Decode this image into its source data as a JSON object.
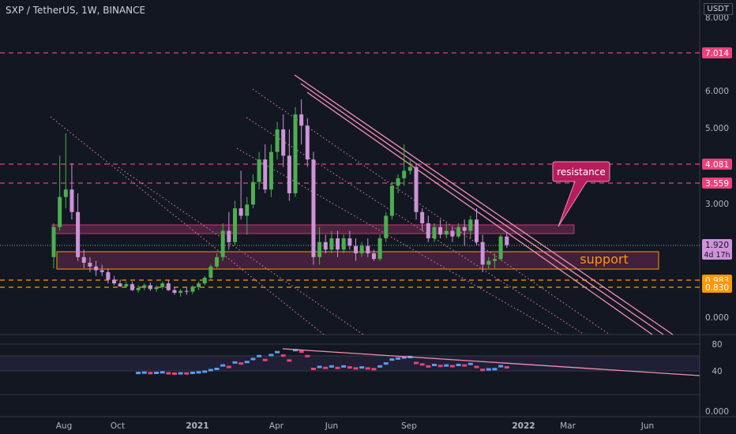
{
  "header": {
    "symbol": "SXP / TetherUS, 1W, BINANCE",
    "unit": "USDT"
  },
  "colors": {
    "bg": "#131722",
    "up": "#4caf50",
    "down": "#ce93d8",
    "trend": "#f48fb1",
    "resistance_line": "#ec407a",
    "support_line": "#ff9800",
    "zone": "#7a2e5a",
    "support_zone_border": "#ff9800",
    "dotted": "#f48fb1",
    "grid": "#2a2e39",
    "axis_text": "#b2b5be",
    "rsi": "#5b9cf6"
  },
  "chart_data": {
    "type": "candlestick",
    "y_axis": {
      "ticks": [
        "8.000",
        "6.000",
        "5.000",
        "3.000",
        "0.000"
      ]
    },
    "x_axis": {
      "ticks": [
        "Aug",
        "Oct",
        "2021",
        "Apr",
        "Jun",
        "Sep",
        "2022",
        "Mar",
        "Jun"
      ]
    },
    "levels": [
      {
        "name": "resistance-top",
        "value": "7.014",
        "style": "dashed",
        "color": "#ec407a"
      },
      {
        "name": "resistance-mid",
        "value": "4.081",
        "style": "dashed",
        "color": "#ec407a"
      },
      {
        "name": "resistance-low",
        "value": "3.559",
        "style": "dashed",
        "color": "#ec407a"
      },
      {
        "name": "support-high",
        "value": "0.983",
        "style": "dashed",
        "color": "#ff9800"
      },
      {
        "name": "support-low",
        "value": "0.830",
        "style": "dashed",
        "color": "#ff9800"
      }
    ],
    "current_price": {
      "value": "1.920",
      "countdown": "4d 17h"
    },
    "annotations": {
      "resistance": "resistance",
      "support": "support"
    },
    "candles": [
      {
        "o": 1.6,
        "h": 2.5,
        "l": 1.3,
        "c": 2.4
      },
      {
        "o": 2.4,
        "h": 4.3,
        "l": 2.3,
        "c": 3.2
      },
      {
        "o": 3.2,
        "h": 4.9,
        "l": 2.9,
        "c": 3.4
      },
      {
        "o": 3.4,
        "h": 4.1,
        "l": 2.6,
        "c": 2.8
      },
      {
        "o": 2.8,
        "h": 3.3,
        "l": 1.5,
        "c": 1.6
      },
      {
        "o": 1.6,
        "h": 1.8,
        "l": 1.3,
        "c": 1.45
      },
      {
        "o": 1.45,
        "h": 1.6,
        "l": 1.2,
        "c": 1.35
      },
      {
        "o": 1.35,
        "h": 1.5,
        "l": 1.1,
        "c": 1.25
      },
      {
        "o": 1.25,
        "h": 1.4,
        "l": 1.1,
        "c": 1.2
      },
      {
        "o": 1.2,
        "h": 1.3,
        "l": 0.9,
        "c": 1.0
      },
      {
        "o": 1.0,
        "h": 1.1,
        "l": 0.85,
        "c": 0.9
      },
      {
        "o": 0.9,
        "h": 1.0,
        "l": 0.8,
        "c": 0.82
      },
      {
        "o": 0.82,
        "h": 0.95,
        "l": 0.78,
        "c": 0.88
      },
      {
        "o": 0.88,
        "h": 0.95,
        "l": 0.7,
        "c": 0.72
      },
      {
        "o": 0.72,
        "h": 0.85,
        "l": 0.65,
        "c": 0.78
      },
      {
        "o": 0.78,
        "h": 0.9,
        "l": 0.72,
        "c": 0.85
      },
      {
        "o": 0.85,
        "h": 0.92,
        "l": 0.7,
        "c": 0.75
      },
      {
        "o": 0.75,
        "h": 0.85,
        "l": 0.68,
        "c": 0.8
      },
      {
        "o": 0.8,
        "h": 0.95,
        "l": 0.75,
        "c": 0.9
      },
      {
        "o": 0.9,
        "h": 1.0,
        "l": 0.7,
        "c": 0.72
      },
      {
        "o": 0.72,
        "h": 0.8,
        "l": 0.6,
        "c": 0.65
      },
      {
        "o": 0.65,
        "h": 0.75,
        "l": 0.55,
        "c": 0.7
      },
      {
        "o": 0.7,
        "h": 0.8,
        "l": 0.6,
        "c": 0.68
      },
      {
        "o": 0.68,
        "h": 0.85,
        "l": 0.62,
        "c": 0.8
      },
      {
        "o": 0.8,
        "h": 0.95,
        "l": 0.72,
        "c": 0.9
      },
      {
        "o": 0.9,
        "h": 1.1,
        "l": 0.85,
        "c": 1.05
      },
      {
        "o": 1.05,
        "h": 1.4,
        "l": 1.0,
        "c": 1.35
      },
      {
        "o": 1.35,
        "h": 1.7,
        "l": 1.3,
        "c": 1.6
      },
      {
        "o": 1.6,
        "h": 2.5,
        "l": 1.5,
        "c": 2.3
      },
      {
        "o": 2.3,
        "h": 2.8,
        "l": 1.8,
        "c": 2.0
      },
      {
        "o": 2.0,
        "h": 3.1,
        "l": 1.9,
        "c": 2.9
      },
      {
        "o": 2.9,
        "h": 3.9,
        "l": 2.6,
        "c": 2.7
      },
      {
        "o": 2.7,
        "h": 3.2,
        "l": 2.2,
        "c": 3.0
      },
      {
        "o": 3.0,
        "h": 3.8,
        "l": 2.9,
        "c": 3.6
      },
      {
        "o": 3.6,
        "h": 4.4,
        "l": 3.4,
        "c": 4.2
      },
      {
        "o": 4.2,
        "h": 4.6,
        "l": 3.3,
        "c": 3.4
      },
      {
        "o": 3.4,
        "h": 4.6,
        "l": 3.2,
        "c": 4.4
      },
      {
        "o": 4.4,
        "h": 5.2,
        "l": 4.2,
        "c": 5.0
      },
      {
        "o": 5.0,
        "h": 5.4,
        "l": 4.0,
        "c": 4.3
      },
      {
        "o": 4.3,
        "h": 5.0,
        "l": 3.1,
        "c": 3.3
      },
      {
        "o": 3.3,
        "h": 5.6,
        "l": 3.2,
        "c": 5.4
      },
      {
        "o": 5.4,
        "h": 5.8,
        "l": 4.6,
        "c": 5.1
      },
      {
        "o": 5.1,
        "h": 5.3,
        "l": 4.0,
        "c": 4.2
      },
      {
        "o": 4.2,
        "h": 4.4,
        "l": 1.4,
        "c": 1.6
      },
      {
        "o": 1.6,
        "h": 2.4,
        "l": 1.4,
        "c": 2.0
      },
      {
        "o": 2.0,
        "h": 2.2,
        "l": 1.7,
        "c": 1.8
      },
      {
        "o": 1.8,
        "h": 2.3,
        "l": 1.7,
        "c": 2.1
      },
      {
        "o": 2.1,
        "h": 2.3,
        "l": 1.6,
        "c": 1.8
      },
      {
        "o": 1.8,
        "h": 2.2,
        "l": 1.7,
        "c": 2.1
      },
      {
        "o": 2.1,
        "h": 2.3,
        "l": 1.8,
        "c": 1.9
      },
      {
        "o": 1.9,
        "h": 2.1,
        "l": 1.5,
        "c": 1.7
      },
      {
        "o": 1.7,
        "h": 2.0,
        "l": 1.6,
        "c": 1.9
      },
      {
        "o": 1.9,
        "h": 2.1,
        "l": 1.6,
        "c": 1.7
      },
      {
        "o": 1.7,
        "h": 1.8,
        "l": 1.5,
        "c": 1.55
      },
      {
        "o": 1.55,
        "h": 2.2,
        "l": 1.5,
        "c": 2.1
      },
      {
        "o": 2.1,
        "h": 2.8,
        "l": 2.0,
        "c": 2.7
      },
      {
        "o": 2.7,
        "h": 3.6,
        "l": 2.6,
        "c": 3.5
      },
      {
        "o": 3.5,
        "h": 3.8,
        "l": 3.3,
        "c": 3.7
      },
      {
        "o": 3.7,
        "h": 4.6,
        "l": 3.5,
        "c": 3.9
      },
      {
        "o": 3.9,
        "h": 4.2,
        "l": 3.8,
        "c": 4.0
      },
      {
        "o": 4.0,
        "h": 4.1,
        "l": 2.6,
        "c": 2.8
      },
      {
        "o": 2.8,
        "h": 2.9,
        "l": 2.3,
        "c": 2.5
      },
      {
        "o": 2.5,
        "h": 2.7,
        "l": 2.0,
        "c": 2.1
      },
      {
        "o": 2.1,
        "h": 2.5,
        "l": 2.0,
        "c": 2.4
      },
      {
        "o": 2.4,
        "h": 2.6,
        "l": 2.1,
        "c": 2.2
      },
      {
        "o": 2.2,
        "h": 2.5,
        "l": 2.1,
        "c": 2.3
      },
      {
        "o": 2.3,
        "h": 2.4,
        "l": 2.0,
        "c": 2.15
      },
      {
        "o": 2.15,
        "h": 2.5,
        "l": 2.1,
        "c": 2.4
      },
      {
        "o": 2.4,
        "h": 2.6,
        "l": 1.9,
        "c": 2.3
      },
      {
        "o": 2.3,
        "h": 2.7,
        "l": 2.1,
        "c": 2.6
      },
      {
        "o": 2.6,
        "h": 2.9,
        "l": 1.9,
        "c": 2.0
      },
      {
        "o": 2.0,
        "h": 2.2,
        "l": 1.2,
        "c": 1.4
      },
      {
        "o": 1.4,
        "h": 1.6,
        "l": 1.3,
        "c": 1.5
      },
      {
        "o": 1.5,
        "h": 1.7,
        "l": 1.3,
        "c": 1.55
      },
      {
        "o": 1.55,
        "h": 2.2,
        "l": 1.5,
        "c": 2.15
      },
      {
        "o": 2.15,
        "h": 2.25,
        "l": 1.85,
        "c": 1.92
      }
    ],
    "rsi": {
      "ticks": [
        "80",
        "40",
        "0.000"
      ]
    }
  }
}
